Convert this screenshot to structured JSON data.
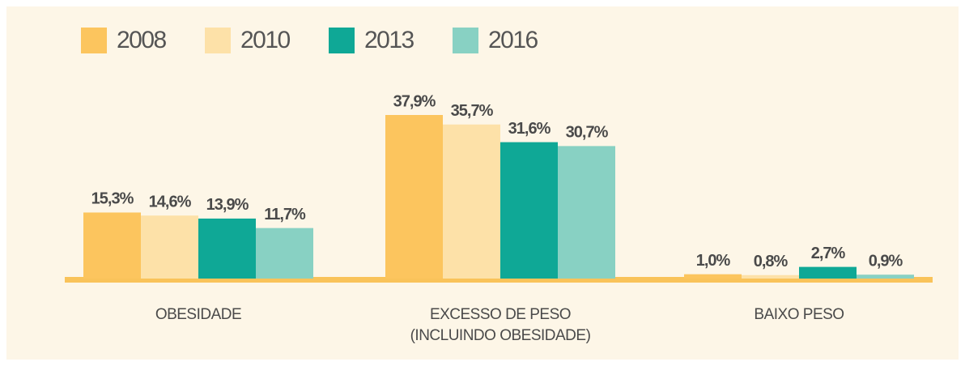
{
  "chart_data": {
    "type": "bar",
    "categories": [
      "OBESIDADE",
      "EXCESSO DE PESO\n(INCLUINDO OBESIDADE)",
      "BAIXO PESO"
    ],
    "series": [
      {
        "name": "2008",
        "color": "#fcc55e",
        "values": [
          15.3,
          37.9,
          1.0
        ],
        "value_labels": [
          "15,3%",
          "37,9%",
          "1,0%"
        ]
      },
      {
        "name": "2010",
        "color": "#fde1a8",
        "values": [
          14.6,
          35.7,
          0.8
        ],
        "value_labels": [
          "14,6%",
          "35,7%",
          "0,8%"
        ]
      },
      {
        "name": "2013",
        "color": "#0fa896",
        "values": [
          13.9,
          31.6,
          2.7
        ],
        "value_labels": [
          "13,9%",
          "31,6%",
          "2,7%"
        ]
      },
      {
        "name": "2016",
        "color": "#88d1c3",
        "values": [
          11.7,
          30.7,
          0.9
        ],
        "value_labels": [
          "11,7%",
          "30,7%",
          "0,9%"
        ]
      }
    ],
    "legend": "top-left"
  }
}
